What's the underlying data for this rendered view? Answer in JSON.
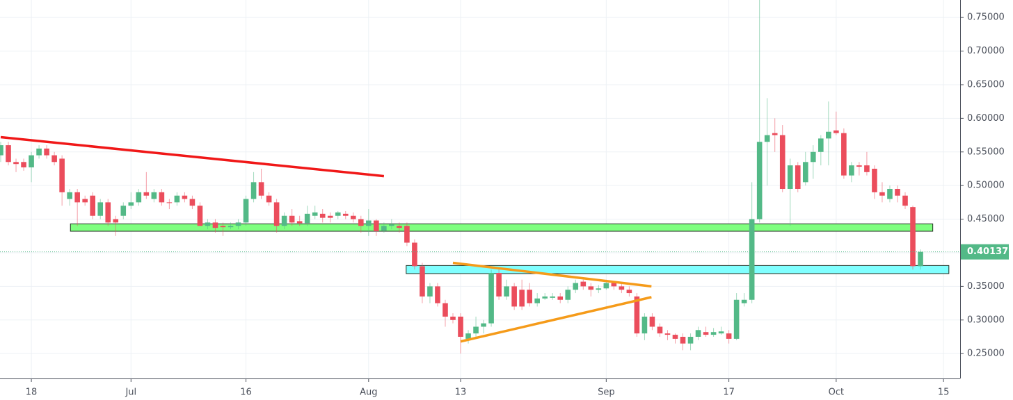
{
  "chart_data": {
    "type": "candlestick",
    "categories": [
      null,
      null,
      null,
      null,
      "18",
      null,
      null,
      null,
      null,
      null,
      null,
      null,
      null,
      null,
      null,
      null,
      null,
      "Jul",
      null,
      null,
      null,
      null,
      null,
      null,
      null,
      null,
      null,
      null,
      null,
      null,
      null,
      null,
      "16",
      null,
      null,
      null,
      null,
      null,
      null,
      null,
      null,
      null,
      null,
      null,
      null,
      null,
      null,
      null,
      "Aug",
      null,
      null,
      null,
      null,
      null,
      null,
      null,
      null,
      null,
      null,
      null,
      "13",
      null,
      null,
      null,
      null,
      null,
      null,
      null,
      null,
      null,
      null,
      null,
      null,
      null,
      null,
      null,
      null,
      null,
      null,
      "Sep",
      null,
      null,
      null,
      null,
      null,
      null,
      null,
      null,
      null,
      null,
      null,
      null,
      null,
      null,
      null,
      "17",
      null,
      null,
      null,
      null,
      null,
      null,
      null,
      null,
      null,
      null,
      null,
      null,
      null,
      "Oct",
      null,
      null,
      null,
      null,
      null,
      null,
      null,
      null,
      null,
      null,
      null,
      null,
      null,
      "15"
    ],
    "open": [
      0.545,
      0.56,
      0.535,
      0.535,
      0.527,
      0.545,
      0.555,
      0.545,
      0.54,
      0.48,
      0.49,
      0.48,
      0.485,
      0.455,
      0.475,
      0.45,
      0.455,
      0.47,
      0.475,
      0.49,
      0.48,
      0.49,
      0.475,
      0.475,
      0.485,
      0.48,
      0.47,
      0.44,
      0.445,
      0.44,
      0.438,
      0.44,
      0.445,
      0.48,
      0.505,
      0.485,
      0.475,
      0.44,
      0.455,
      0.447,
      0.444,
      0.455,
      0.458,
      0.455,
      0.455,
      0.458,
      0.455,
      0.45,
      0.44,
      0.448,
      0.433,
      0.44,
      0.44,
      0.44,
      0.415,
      0.38,
      0.335,
      0.35,
      0.325,
      0.305,
      0.305,
      0.272,
      0.28,
      0.29,
      0.295,
      0.37,
      0.335,
      0.35,
      0.345,
      0.345,
      0.325,
      0.332,
      0.333,
      0.335,
      0.33,
      0.345,
      0.357,
      0.35,
      0.345,
      0.347,
      0.355,
      0.35,
      0.345,
      0.335,
      0.28,
      0.305,
      0.29,
      0.28,
      0.278,
      0.275,
      0.265,
      0.275,
      0.282,
      0.278,
      0.28,
      0.28,
      0.272,
      0.325,
      0.33,
      0.45,
      0.565,
      0.578,
      0.575,
      0.495,
      0.53,
      0.505,
      0.535,
      0.55,
      0.57,
      0.582,
      0.578,
      0.515,
      0.53,
      0.53,
      0.525,
      0.49,
      0.48,
      0.495,
      0.485,
      0.468,
      0.38,
      null,
      null,
      null
    ],
    "high": [
      0.565,
      0.565,
      0.54,
      0.54,
      0.55,
      0.56,
      0.56,
      0.55,
      0.545,
      0.495,
      0.495,
      0.485,
      0.49,
      0.48,
      0.48,
      0.455,
      0.475,
      0.49,
      0.495,
      0.52,
      0.495,
      0.495,
      0.48,
      0.49,
      0.49,
      0.485,
      0.475,
      0.45,
      0.45,
      0.445,
      0.445,
      0.45,
      0.485,
      0.52,
      0.525,
      0.49,
      0.48,
      0.46,
      0.465,
      0.455,
      0.47,
      0.47,
      0.465,
      0.46,
      0.462,
      0.462,
      0.46,
      0.455,
      0.465,
      0.45,
      0.445,
      0.45,
      0.445,
      0.445,
      0.42,
      0.385,
      0.355,
      0.355,
      0.33,
      0.31,
      0.31,
      0.285,
      0.305,
      0.3,
      0.375,
      0.375,
      0.36,
      0.355,
      0.36,
      0.355,
      0.34,
      0.34,
      0.34,
      0.34,
      0.35,
      0.36,
      0.36,
      0.355,
      0.352,
      0.36,
      0.358,
      0.355,
      0.35,
      0.34,
      0.31,
      0.31,
      0.295,
      0.285,
      0.28,
      0.28,
      0.28,
      0.29,
      0.29,
      0.288,
      0.29,
      0.285,
      0.34,
      0.34,
      0.505,
      0.78,
      0.63,
      0.6,
      0.59,
      0.54,
      0.535,
      0.55,
      0.56,
      0.575,
      0.625,
      0.61,
      0.585,
      0.535,
      0.535,
      0.55,
      0.53,
      0.505,
      0.5,
      0.5,
      0.49,
      0.47,
      0.405,
      null,
      null,
      null
    ],
    "low": [
      0.535,
      0.53,
      0.52,
      0.522,
      0.505,
      0.54,
      0.54,
      0.53,
      0.47,
      0.47,
      0.44,
      0.47,
      0.45,
      0.45,
      0.44,
      0.425,
      0.45,
      0.465,
      0.47,
      0.48,
      0.475,
      0.47,
      0.465,
      0.47,
      0.475,
      0.465,
      0.44,
      0.435,
      0.43,
      0.425,
      0.435,
      0.435,
      0.44,
      0.475,
      0.48,
      0.47,
      0.43,
      0.435,
      0.44,
      0.44,
      0.44,
      0.45,
      0.445,
      0.445,
      0.45,
      0.45,
      0.445,
      0.43,
      0.425,
      0.425,
      0.43,
      0.435,
      0.43,
      0.41,
      0.375,
      0.325,
      0.325,
      0.32,
      0.29,
      0.295,
      0.25,
      0.265,
      0.275,
      0.28,
      0.29,
      0.33,
      0.33,
      0.315,
      0.315,
      0.32,
      0.32,
      0.33,
      0.33,
      0.325,
      0.325,
      0.34,
      0.345,
      0.335,
      0.34,
      0.345,
      0.345,
      0.34,
      0.335,
      0.275,
      0.27,
      0.285,
      0.275,
      0.27,
      0.265,
      0.255,
      0.255,
      0.27,
      0.275,
      0.275,
      0.278,
      0.265,
      0.27,
      0.32,
      0.325,
      0.445,
      0.5,
      0.55,
      0.49,
      0.44,
      0.49,
      0.5,
      0.51,
      0.53,
      0.53,
      0.575,
      0.51,
      0.505,
      0.515,
      0.515,
      0.48,
      0.475,
      0.475,
      0.475,
      0.465,
      0.375,
      0.375,
      null,
      null,
      null
    ],
    "close": [
      0.56,
      0.535,
      0.532,
      0.527,
      0.545,
      0.555,
      0.545,
      0.535,
      0.49,
      0.49,
      0.475,
      0.475,
      0.455,
      0.475,
      0.445,
      0.445,
      0.47,
      0.475,
      0.49,
      0.485,
      0.49,
      0.475,
      0.474,
      0.485,
      0.48,
      0.47,
      0.44,
      0.445,
      0.437,
      0.438,
      0.44,
      0.445,
      0.48,
      0.505,
      0.485,
      0.475,
      0.44,
      0.455,
      0.445,
      0.444,
      0.458,
      0.46,
      0.452,
      0.452,
      0.46,
      0.455,
      0.45,
      0.44,
      0.448,
      0.432,
      0.44,
      0.442,
      0.437,
      0.415,
      0.38,
      0.335,
      0.35,
      0.325,
      0.305,
      0.3,
      0.275,
      0.28,
      0.29,
      0.295,
      0.37,
      0.335,
      0.35,
      0.32,
      0.32,
      0.325,
      0.332,
      0.335,
      0.335,
      0.33,
      0.345,
      0.355,
      0.35,
      0.345,
      0.347,
      0.355,
      0.35,
      0.345,
      0.34,
      0.28,
      0.305,
      0.29,
      0.28,
      0.278,
      0.272,
      0.265,
      0.275,
      0.285,
      0.278,
      0.282,
      0.283,
      0.272,
      0.33,
      0.33,
      0.45,
      0.565,
      0.575,
      0.575,
      0.495,
      0.53,
      0.495,
      0.535,
      0.55,
      0.57,
      0.58,
      0.578,
      0.515,
      0.53,
      0.528,
      0.52,
      0.49,
      0.485,
      0.495,
      0.485,
      0.47,
      0.38,
      0.40137,
      null,
      null,
      null
    ],
    "up_color": "#53b987",
    "down_color": "#eb4d5c",
    "ylim": [
      0.213,
      0.776
    ],
    "yticks": [
      {
        "value": 0.25,
        "label": "0.25000"
      },
      {
        "value": 0.3,
        "label": "0.30000"
      },
      {
        "value": 0.35,
        "label": "0.35000"
      },
      {
        "value": 0.4,
        "label": "0.40000"
      },
      {
        "value": 0.45,
        "label": "0.45000"
      },
      {
        "value": 0.5,
        "label": "0.50000"
      },
      {
        "value": 0.55,
        "label": "0.55000"
      },
      {
        "value": 0.6,
        "label": "0.60000"
      },
      {
        "value": 0.65,
        "label": "0.65000"
      },
      {
        "value": 0.7,
        "label": "0.70000"
      },
      {
        "value": 0.75,
        "label": "0.75000"
      }
    ],
    "grid": true,
    "last_price": 0.40137,
    "trend_lines": [
      {
        "color": "#f01818",
        "x": [
          0,
          50
        ],
        "y": [
          0.572,
          0.514
        ]
      },
      {
        "color": "#f59b1a",
        "x": [
          59,
          84.9
        ],
        "y": [
          0.385,
          0.35
        ]
      },
      {
        "color": "#f59b1a",
        "x": [
          60,
          84.9
        ],
        "y": [
          0.268,
          0.334
        ]
      }
    ],
    "zones": [
      {
        "color": "#80ff80",
        "x": [
          9.1,
          121.6
        ],
        "y": [
          0.443,
          0.432
        ]
      },
      {
        "color": "#80ffff",
        "x": [
          52.9,
          123.7
        ],
        "y": [
          0.381,
          0.369
        ]
      }
    ]
  }
}
